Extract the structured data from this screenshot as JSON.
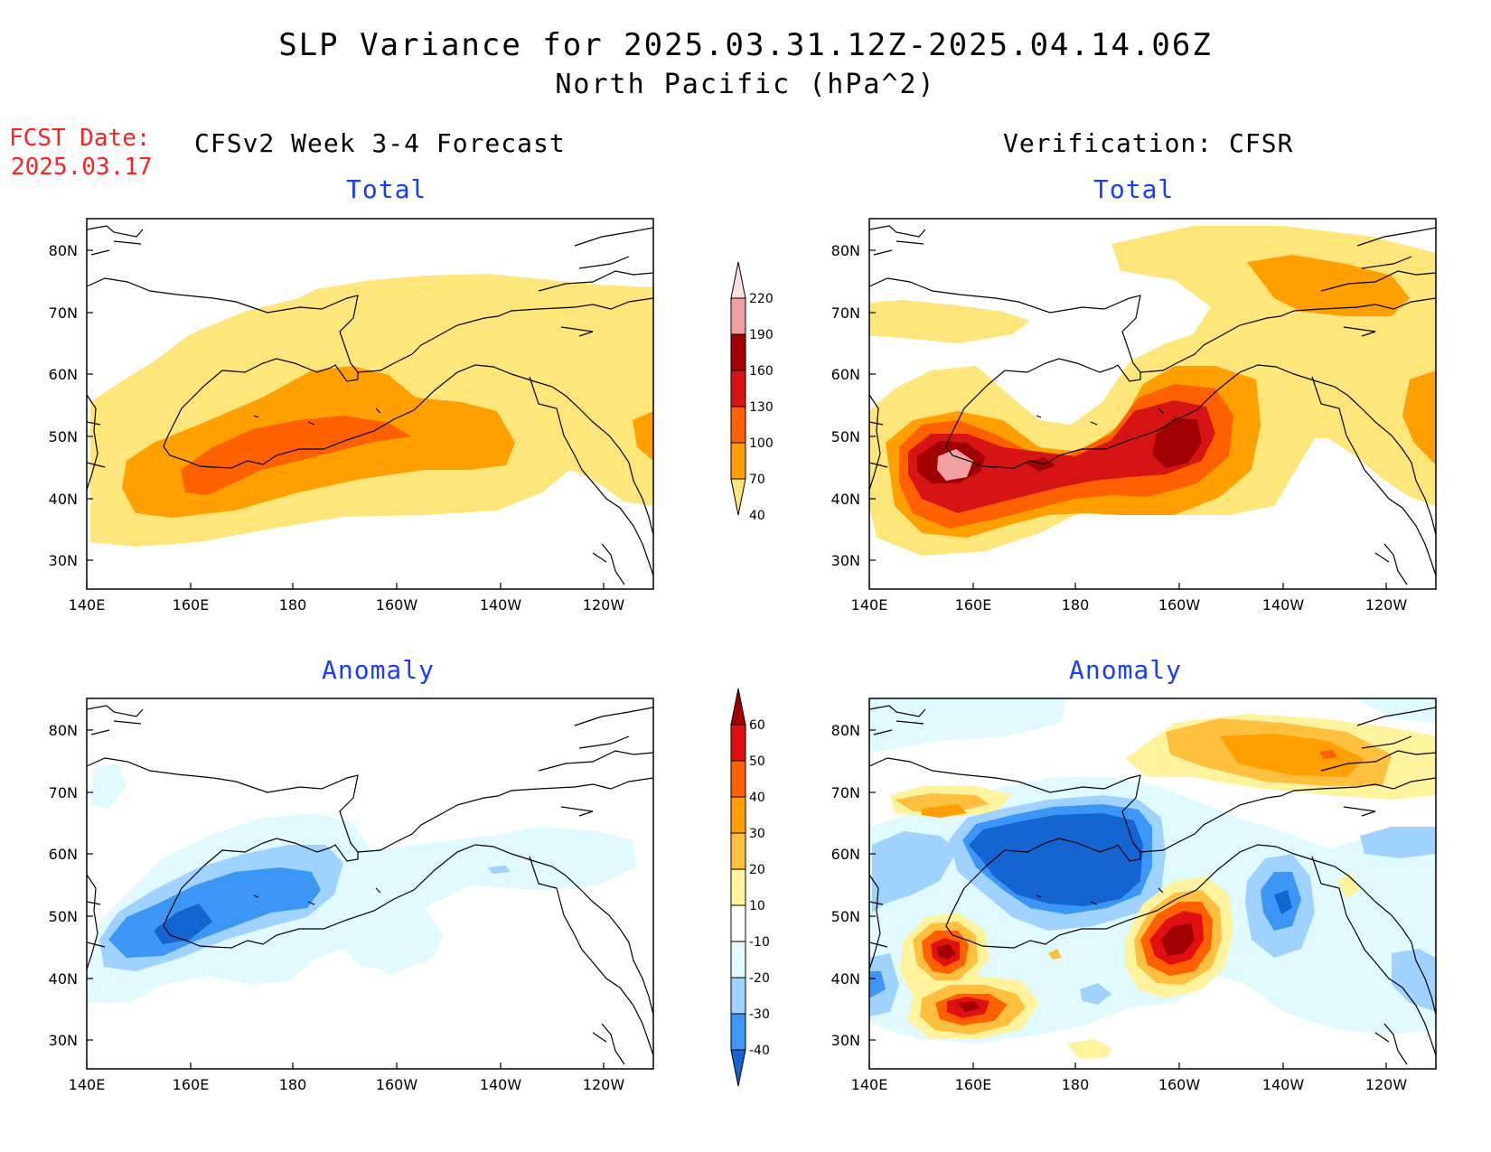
{
  "title": {
    "line1": "SLP Variance for 2025.03.31.12Z-2025.04.14.06Z",
    "line2": "North Pacific (hPa^2)"
  },
  "forecast": {
    "label": "FCST Date:",
    "date": "2025.03.17"
  },
  "columns": {
    "left": "CFSv2 Week 3-4 Forecast",
    "right": "Verification: CFSR"
  },
  "panels": {
    "top_label": "Total",
    "bottom_label": "Anomaly"
  },
  "axes": {
    "lat_ticks": [
      "80N",
      "70N",
      "60N",
      "50N",
      "40N",
      "30N"
    ],
    "lon_ticks": [
      "140E",
      "160E",
      "180",
      "160W",
      "140W",
      "120W"
    ]
  },
  "colorbars": {
    "total": {
      "labels": [
        "220",
        "190",
        "160",
        "130",
        "100",
        "70",
        "40"
      ],
      "colors": [
        "#fde0dc",
        "#f0a0a0",
        "#a00000",
        "#d71414",
        "#ff6000",
        "#ffa000",
        "#ffe67a"
      ]
    },
    "anomaly": {
      "labels": [
        "60",
        "50",
        "40",
        "30",
        "20",
        "10",
        "-10",
        "-20",
        "-30",
        "-40"
      ],
      "colors": [
        "#a00000",
        "#e01010",
        "#ff6000",
        "#ffa000",
        "#ffc040",
        "#fff39e",
        "#ffffff",
        "#e0faff",
        "#a0d2ff",
        "#3c96f5",
        "#1464d2"
      ]
    }
  }
}
